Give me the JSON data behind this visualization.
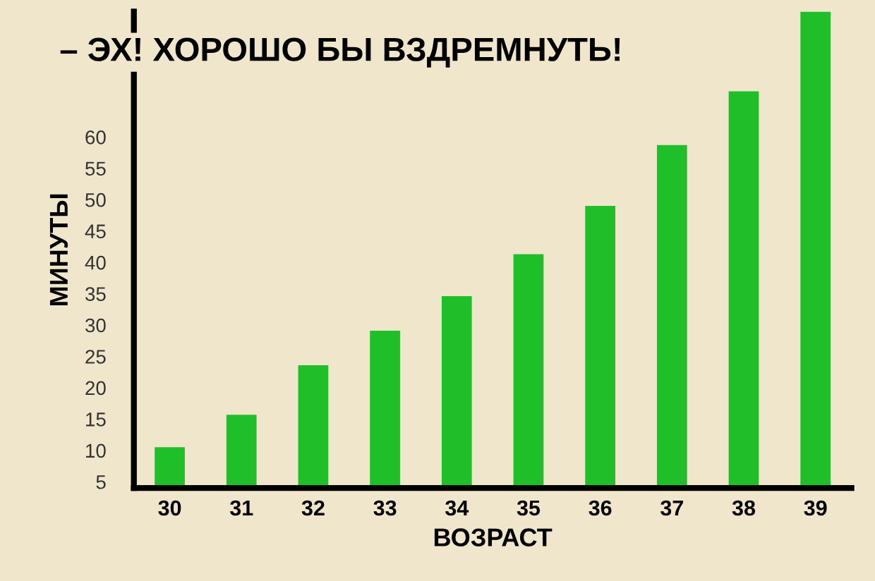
{
  "chart_data": {
    "type": "bar",
    "title": "– ЭХ! ХОРОШО БЫ ВЗДРЕМНУТЬ!",
    "xlabel": "ВОЗРАСТ",
    "ylabel": "МИНУТЫ",
    "categories": [
      "30",
      "31",
      "32",
      "33",
      "34",
      "35",
      "36",
      "37",
      "38",
      "39"
    ],
    "values": [
      10.5,
      15.7,
      23.6,
      29.1,
      34.6,
      41.3,
      49.0,
      58.7,
      67.3,
      80
    ],
    "color": "#1fbf2a",
    "ylim": [
      4,
      80
    ],
    "yticks": [
      5,
      10,
      15,
      20,
      25,
      30,
      35,
      40,
      45,
      50,
      55,
      60
    ],
    "grid": false
  }
}
